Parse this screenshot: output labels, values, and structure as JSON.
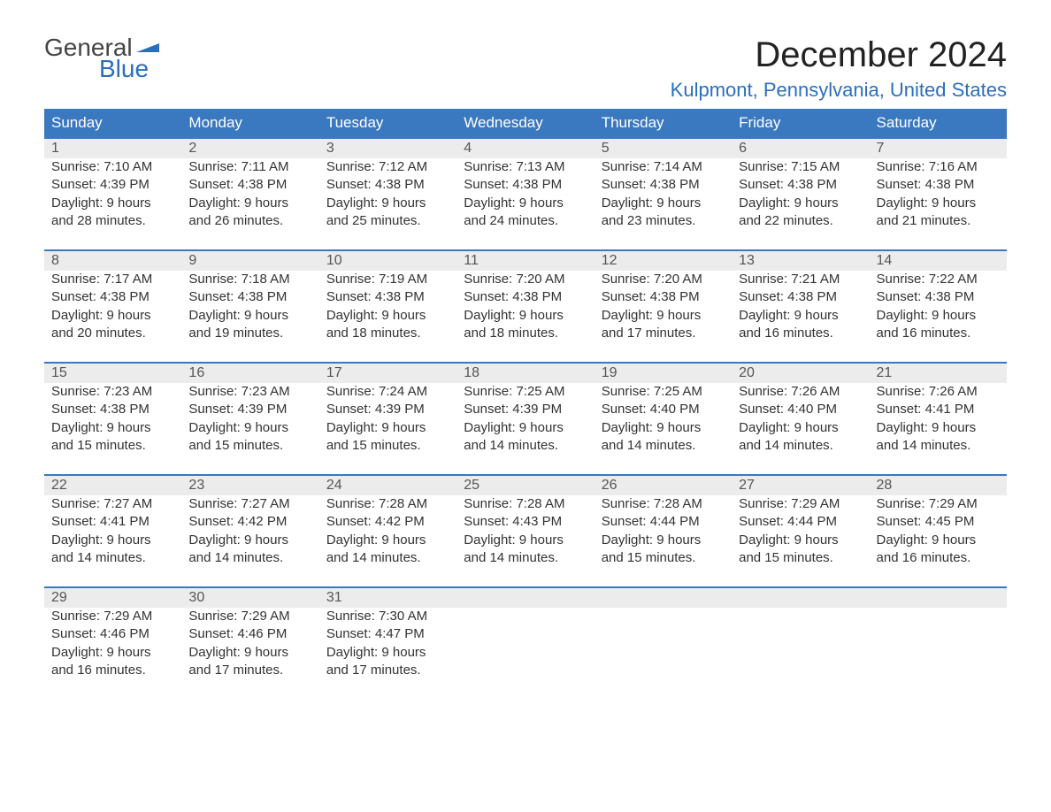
{
  "logo": {
    "word1": "General",
    "word2": "Blue"
  },
  "title": "December 2024",
  "location": "Kulpmont, Pennsylvania, United States",
  "colors": {
    "header_bg": "#3a78c0",
    "header_text": "#ffffff",
    "accent": "#2a6fbf",
    "daynum_bg": "#ececec",
    "page_bg": "#ffffff",
    "body_text": "#333333"
  },
  "typography": {
    "title_fontsize": 40,
    "location_fontsize": 22,
    "header_fontsize": 17,
    "body_fontsize": 15
  },
  "layout": {
    "columns": 7,
    "rows": 5
  },
  "weekdays": [
    "Sunday",
    "Monday",
    "Tuesday",
    "Wednesday",
    "Thursday",
    "Friday",
    "Saturday"
  ],
  "labels": {
    "sunrise": "Sunrise: ",
    "sunset": "Sunset: ",
    "daylight": "Daylight: "
  },
  "weeks": [
    [
      {
        "n": "1",
        "sr": "7:10 AM",
        "ss": "4:39 PM",
        "dl": "9 hours and 28 minutes."
      },
      {
        "n": "2",
        "sr": "7:11 AM",
        "ss": "4:38 PM",
        "dl": "9 hours and 26 minutes."
      },
      {
        "n": "3",
        "sr": "7:12 AM",
        "ss": "4:38 PM",
        "dl": "9 hours and 25 minutes."
      },
      {
        "n": "4",
        "sr": "7:13 AM",
        "ss": "4:38 PM",
        "dl": "9 hours and 24 minutes."
      },
      {
        "n": "5",
        "sr": "7:14 AM",
        "ss": "4:38 PM",
        "dl": "9 hours and 23 minutes."
      },
      {
        "n": "6",
        "sr": "7:15 AM",
        "ss": "4:38 PM",
        "dl": "9 hours and 22 minutes."
      },
      {
        "n": "7",
        "sr": "7:16 AM",
        "ss": "4:38 PM",
        "dl": "9 hours and 21 minutes."
      }
    ],
    [
      {
        "n": "8",
        "sr": "7:17 AM",
        "ss": "4:38 PM",
        "dl": "9 hours and 20 minutes."
      },
      {
        "n": "9",
        "sr": "7:18 AM",
        "ss": "4:38 PM",
        "dl": "9 hours and 19 minutes."
      },
      {
        "n": "10",
        "sr": "7:19 AM",
        "ss": "4:38 PM",
        "dl": "9 hours and 18 minutes."
      },
      {
        "n": "11",
        "sr": "7:20 AM",
        "ss": "4:38 PM",
        "dl": "9 hours and 18 minutes."
      },
      {
        "n": "12",
        "sr": "7:20 AM",
        "ss": "4:38 PM",
        "dl": "9 hours and 17 minutes."
      },
      {
        "n": "13",
        "sr": "7:21 AM",
        "ss": "4:38 PM",
        "dl": "9 hours and 16 minutes."
      },
      {
        "n": "14",
        "sr": "7:22 AM",
        "ss": "4:38 PM",
        "dl": "9 hours and 16 minutes."
      }
    ],
    [
      {
        "n": "15",
        "sr": "7:23 AM",
        "ss": "4:38 PM",
        "dl": "9 hours and 15 minutes."
      },
      {
        "n": "16",
        "sr": "7:23 AM",
        "ss": "4:39 PM",
        "dl": "9 hours and 15 minutes."
      },
      {
        "n": "17",
        "sr": "7:24 AM",
        "ss": "4:39 PM",
        "dl": "9 hours and 15 minutes."
      },
      {
        "n": "18",
        "sr": "7:25 AM",
        "ss": "4:39 PM",
        "dl": "9 hours and 14 minutes."
      },
      {
        "n": "19",
        "sr": "7:25 AM",
        "ss": "4:40 PM",
        "dl": "9 hours and 14 minutes."
      },
      {
        "n": "20",
        "sr": "7:26 AM",
        "ss": "4:40 PM",
        "dl": "9 hours and 14 minutes."
      },
      {
        "n": "21",
        "sr": "7:26 AM",
        "ss": "4:41 PM",
        "dl": "9 hours and 14 minutes."
      }
    ],
    [
      {
        "n": "22",
        "sr": "7:27 AM",
        "ss": "4:41 PM",
        "dl": "9 hours and 14 minutes."
      },
      {
        "n": "23",
        "sr": "7:27 AM",
        "ss": "4:42 PM",
        "dl": "9 hours and 14 minutes."
      },
      {
        "n": "24",
        "sr": "7:28 AM",
        "ss": "4:42 PM",
        "dl": "9 hours and 14 minutes."
      },
      {
        "n": "25",
        "sr": "7:28 AM",
        "ss": "4:43 PM",
        "dl": "9 hours and 14 minutes."
      },
      {
        "n": "26",
        "sr": "7:28 AM",
        "ss": "4:44 PM",
        "dl": "9 hours and 15 minutes."
      },
      {
        "n": "27",
        "sr": "7:29 AM",
        "ss": "4:44 PM",
        "dl": "9 hours and 15 minutes."
      },
      {
        "n": "28",
        "sr": "7:29 AM",
        "ss": "4:45 PM",
        "dl": "9 hours and 16 minutes."
      }
    ],
    [
      {
        "n": "29",
        "sr": "7:29 AM",
        "ss": "4:46 PM",
        "dl": "9 hours and 16 minutes."
      },
      {
        "n": "30",
        "sr": "7:29 AM",
        "ss": "4:46 PM",
        "dl": "9 hours and 17 minutes."
      },
      {
        "n": "31",
        "sr": "7:30 AM",
        "ss": "4:47 PM",
        "dl": "9 hours and 17 minutes."
      },
      null,
      null,
      null,
      null
    ]
  ]
}
